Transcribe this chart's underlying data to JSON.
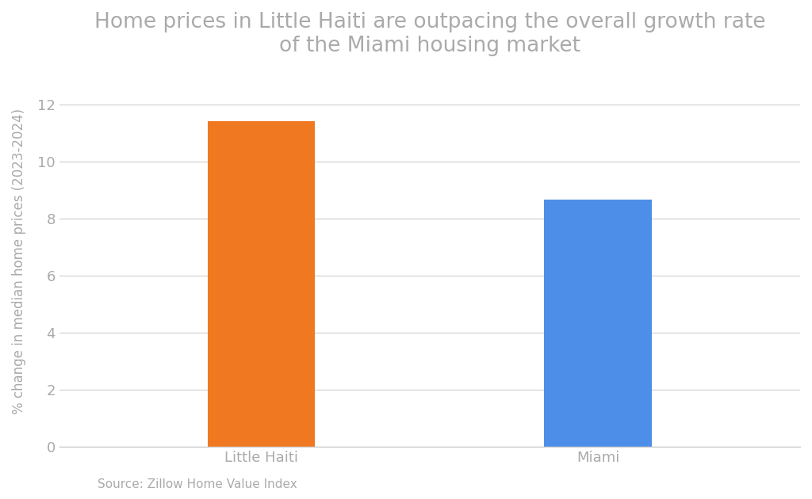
{
  "categories": [
    "Little Haiti",
    "Miami"
  ],
  "values": [
    11.4,
    8.65
  ],
  "bar_colors": [
    "#f07820",
    "#4d8fe8"
  ],
  "title": "Home prices in Little Haiti are outpacing the overall growth rate\nof the Miami housing market",
  "ylabel": "% change in median home prices (2023-2024)",
  "source": "Source: Zillow Home Value Index",
  "ylim": [
    0,
    13
  ],
  "yticks": [
    0,
    2,
    4,
    6,
    8,
    10,
    12
  ],
  "title_color": "#aaaaaa",
  "tick_color": "#aaaaaa",
  "source_color": "#aaaaaa",
  "ylabel_color": "#aaaaaa",
  "grid_color": "#cccccc",
  "background_color": "#ffffff",
  "title_fontsize": 19,
  "ylabel_fontsize": 12,
  "tick_fontsize": 13,
  "source_fontsize": 11,
  "bar_width": 0.32,
  "x_positions": [
    1,
    2
  ],
  "xlim": [
    0.4,
    2.6
  ]
}
